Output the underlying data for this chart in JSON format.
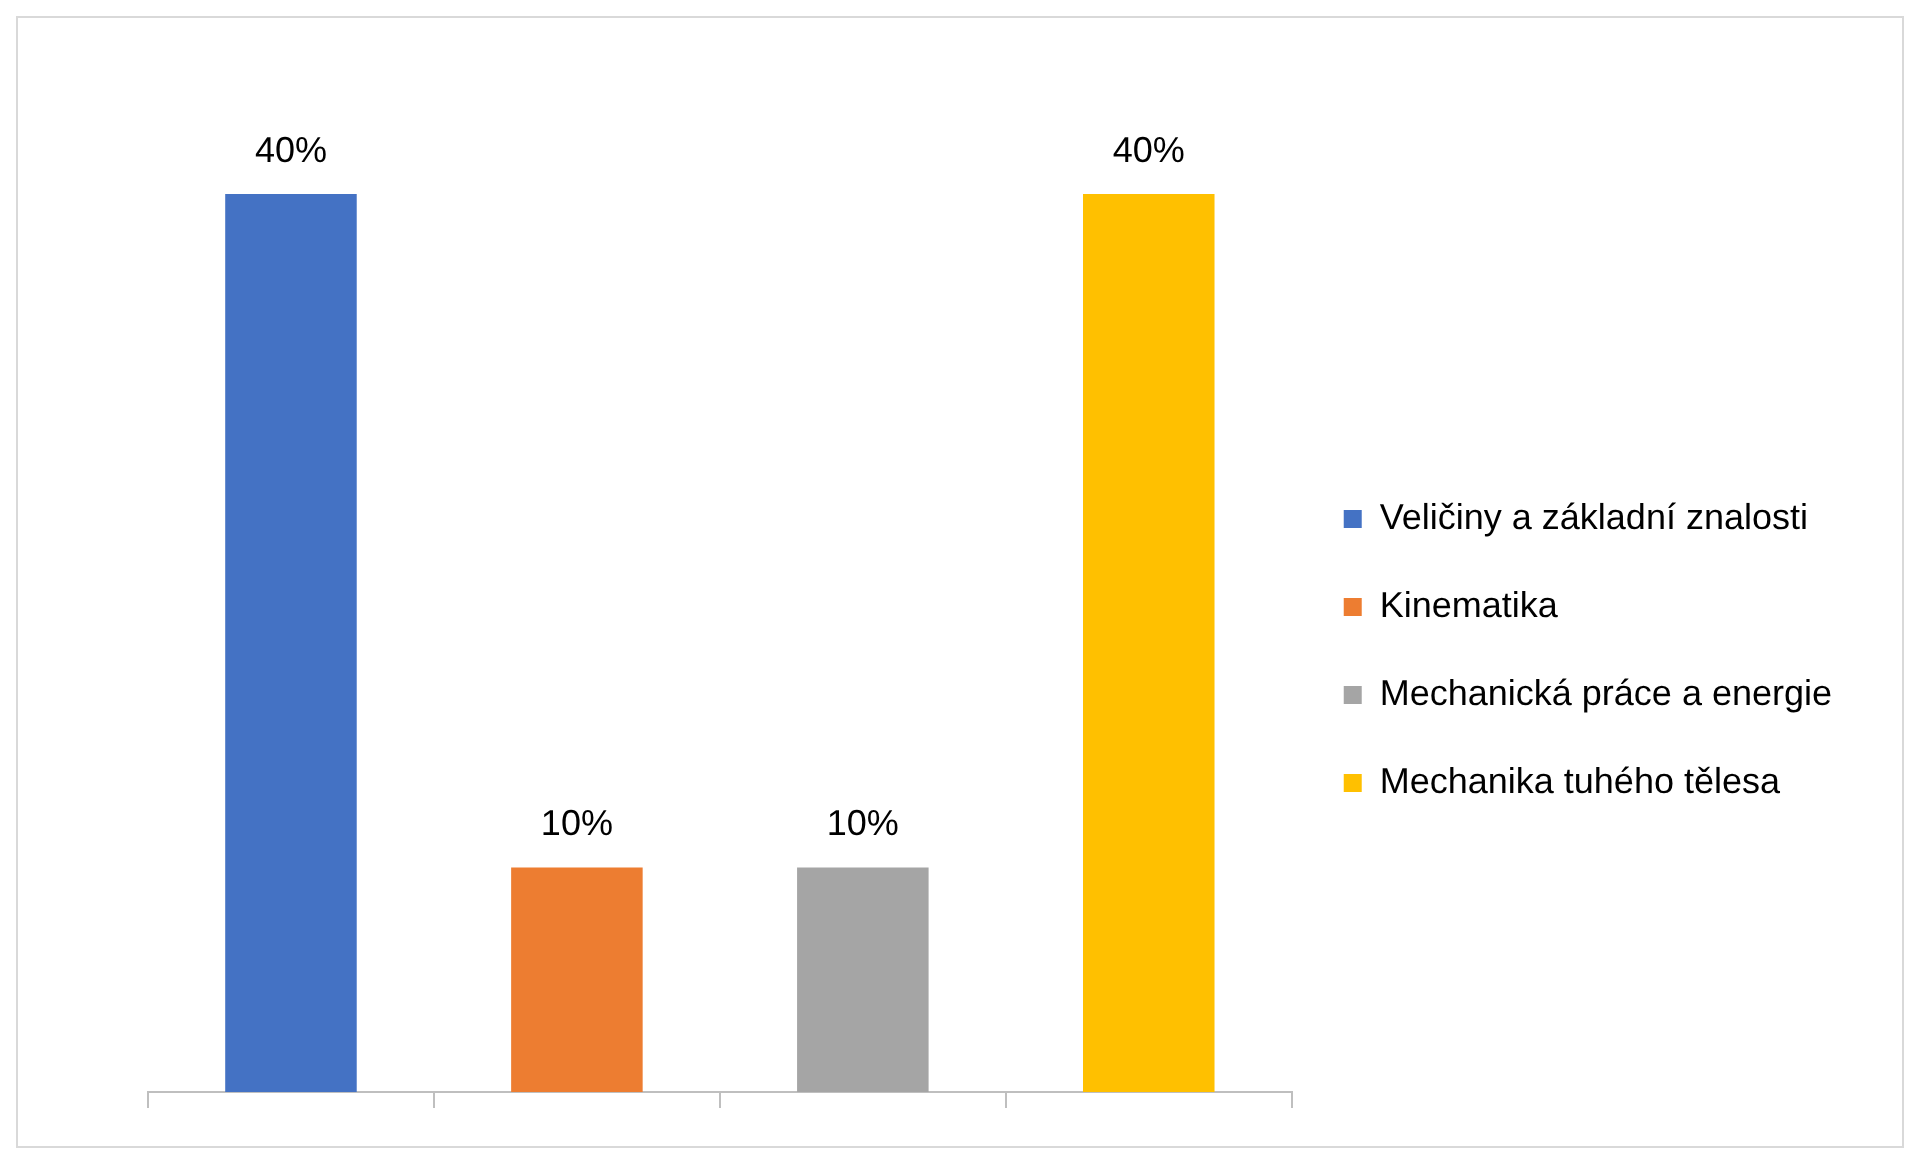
{
  "chart_data": {
    "type": "bar",
    "categories": [
      null,
      null,
      null,
      null
    ],
    "series": [
      {
        "name": "Veličiny a základní znalosti",
        "color": "#4472c4",
        "values": [
          40,
          null,
          null,
          null
        ],
        "value_labels": [
          "40%",
          null,
          null,
          null
        ]
      },
      {
        "name": "Kinematika",
        "color": "#ed7d31",
        "values": [
          null,
          10,
          null,
          null
        ],
        "value_labels": [
          null,
          "10%",
          null,
          null
        ]
      },
      {
        "name": "Mechanická práce a energie",
        "color": "#a5a5a5",
        "values": [
          null,
          null,
          10,
          null
        ],
        "value_labels": [
          null,
          null,
          "10%",
          null
        ]
      },
      {
        "name": "Mechanika tuhého tělesa",
        "color": "#ffc000",
        "values": [
          null,
          null,
          null,
          40
        ],
        "value_labels": [
          null,
          null,
          null,
          "40%"
        ]
      }
    ],
    "stacked": true,
    "legend": "right",
    "tick_labels": false,
    "grid": false
  }
}
